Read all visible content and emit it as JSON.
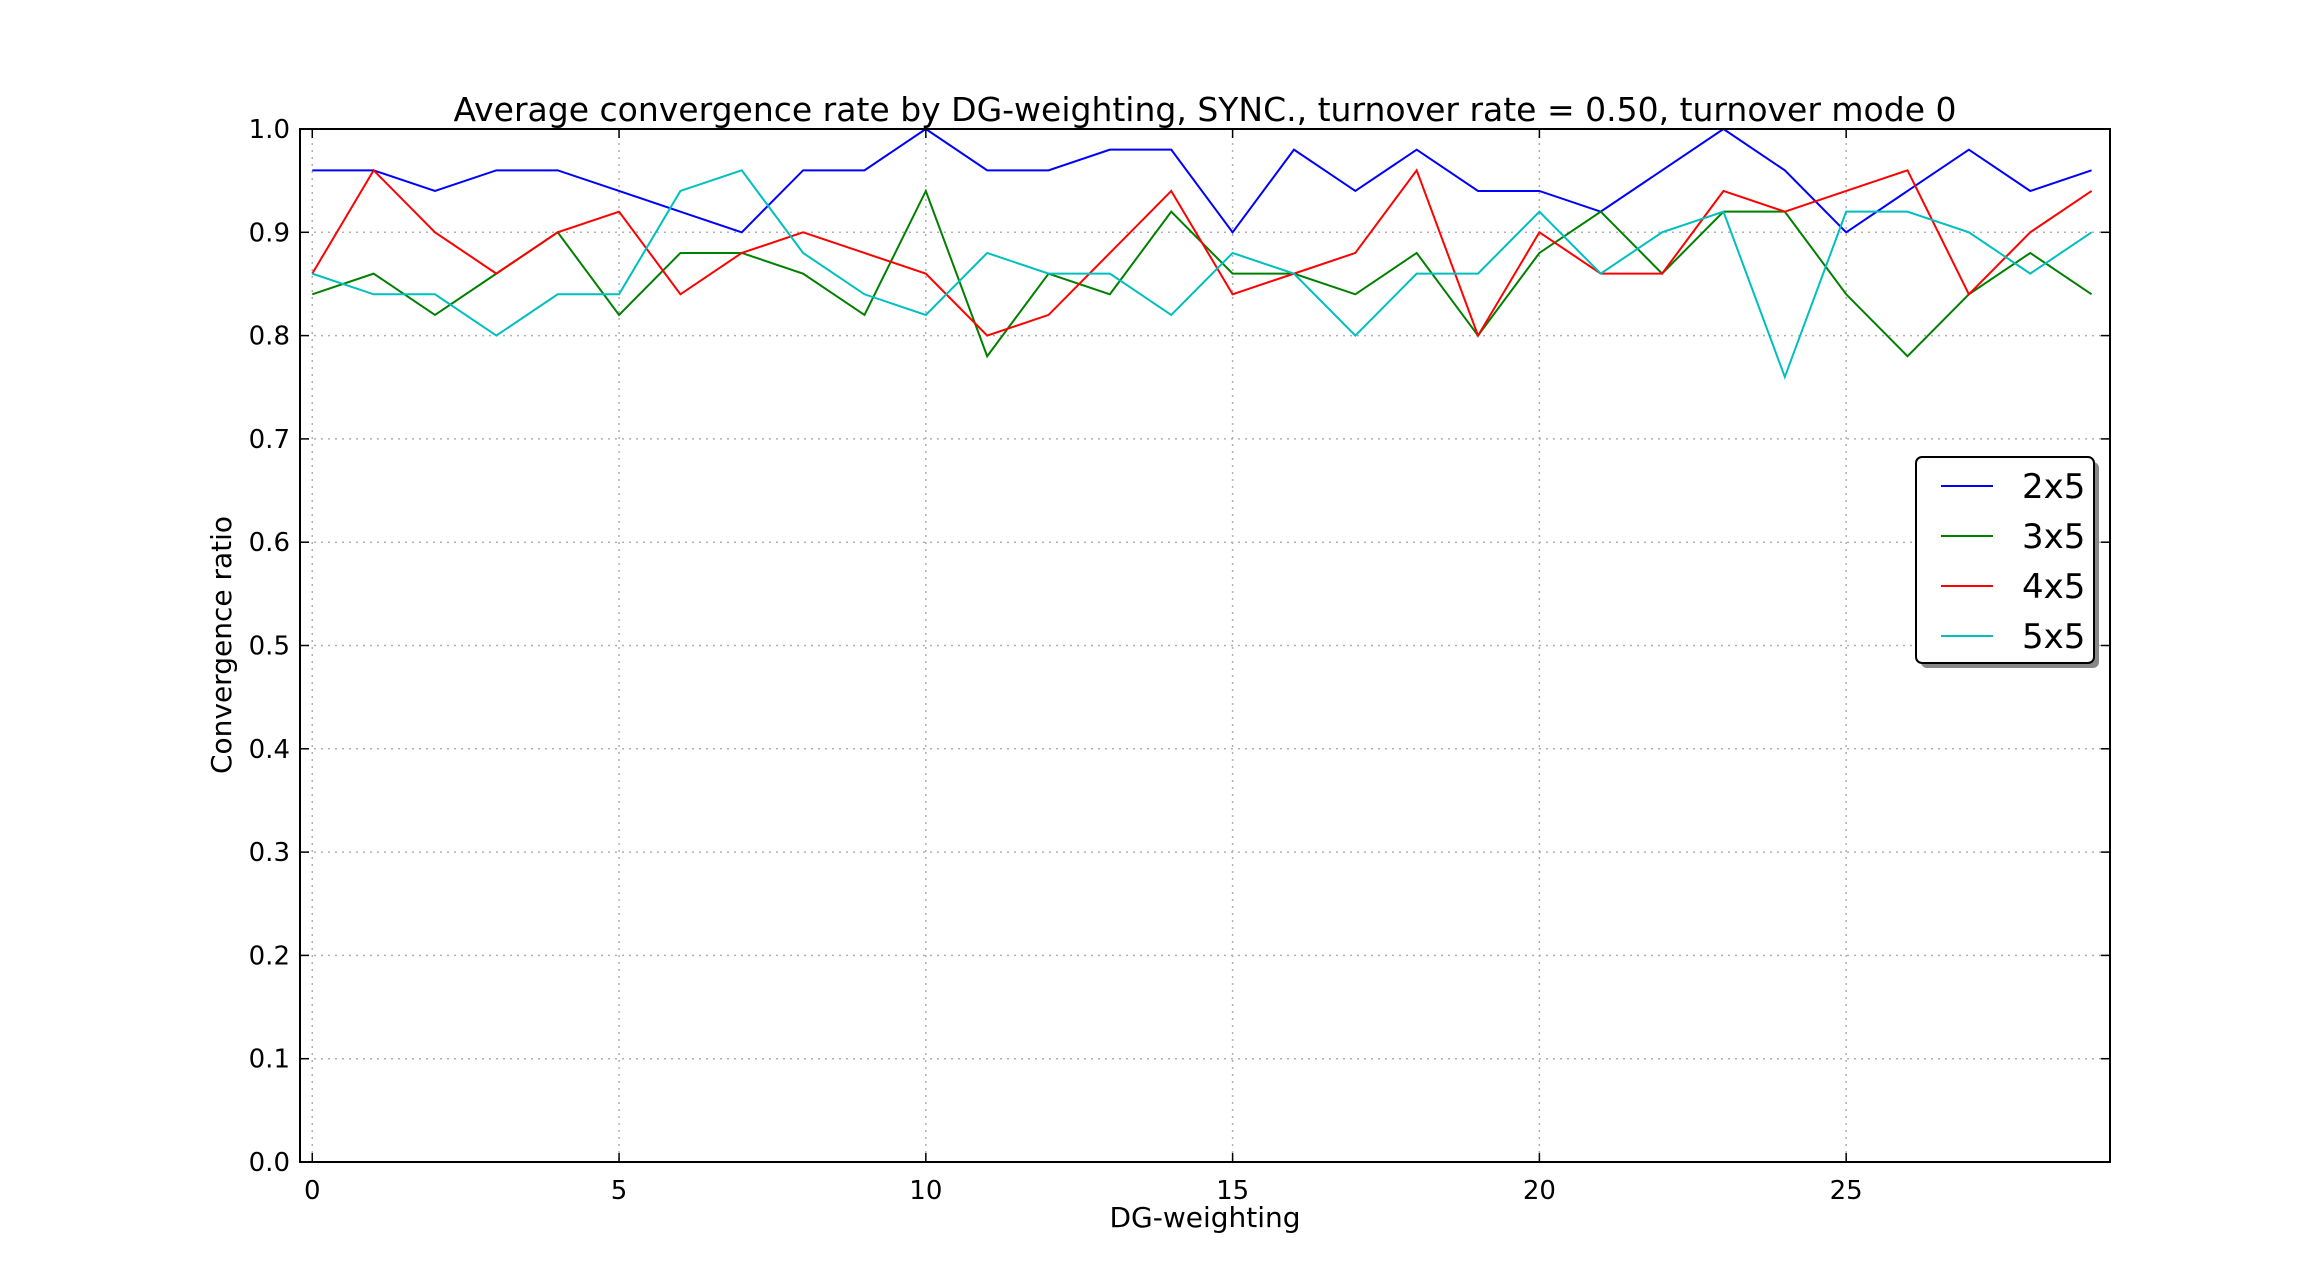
{
  "chart_data": {
    "type": "line",
    "title": "Average convergence rate by DG-weighting, SYNC., turnover rate = 0.50, turnover mode 0",
    "xlabel": "DG-weighting",
    "ylabel": "Convergence ratio",
    "xlim": [
      -0.2,
      29.3
    ],
    "ylim": [
      0.0,
      1.0
    ],
    "x_ticks": [
      0,
      5,
      10,
      15,
      20,
      25
    ],
    "y_ticks": [
      0.0,
      0.1,
      0.2,
      0.3,
      0.4,
      0.5,
      0.6,
      0.7,
      0.8,
      0.9,
      1.0
    ],
    "x_tick_labels": [
      "0",
      "5",
      "10",
      "15",
      "20",
      "25"
    ],
    "y_tick_labels": [
      "0.0",
      "0.1",
      "0.2",
      "0.3",
      "0.4",
      "0.5",
      "0.6",
      "0.7",
      "0.8",
      "0.9",
      "1.0"
    ],
    "grid": true,
    "legend_position": "center-right",
    "x": [
      0,
      1,
      2,
      3,
      4,
      5,
      6,
      7,
      8,
      9,
      10,
      11,
      12,
      13,
      14,
      15,
      16,
      17,
      18,
      19,
      20,
      21,
      22,
      23,
      24,
      25,
      26,
      27,
      28,
      29
    ],
    "series": [
      {
        "name": "2x5",
        "color": "#0000ff",
        "values": [
          0.96,
          0.96,
          0.94,
          0.96,
          0.96,
          0.94,
          0.92,
          0.9,
          0.96,
          0.96,
          1.0,
          0.96,
          0.96,
          0.98,
          0.98,
          0.9,
          0.98,
          0.94,
          0.98,
          0.94,
          0.94,
          0.92,
          0.96,
          1.0,
          0.96,
          0.9,
          0.94,
          0.98,
          0.94,
          0.96
        ]
      },
      {
        "name": "3x5",
        "color": "#008000",
        "values": [
          0.84,
          0.86,
          0.82,
          0.86,
          0.9,
          0.82,
          0.88,
          0.88,
          0.86,
          0.82,
          0.94,
          0.78,
          0.86,
          0.84,
          0.92,
          0.86,
          0.86,
          0.84,
          0.88,
          0.8,
          0.88,
          0.92,
          0.86,
          0.92,
          0.92,
          0.84,
          0.78,
          0.84,
          0.88,
          0.84
        ]
      },
      {
        "name": "4x5",
        "color": "#ff0000",
        "values": [
          0.86,
          0.96,
          0.9,
          0.86,
          0.9,
          0.92,
          0.84,
          0.88,
          0.9,
          0.88,
          0.86,
          0.8,
          0.82,
          0.88,
          0.94,
          0.84,
          0.86,
          0.88,
          0.96,
          0.8,
          0.9,
          0.86,
          0.86,
          0.94,
          0.92,
          0.94,
          0.96,
          0.84,
          0.9,
          0.94
        ]
      },
      {
        "name": "5x5",
        "color": "#00bfbf",
        "values": [
          0.86,
          0.84,
          0.84,
          0.8,
          0.84,
          0.84,
          0.94,
          0.96,
          0.88,
          0.84,
          0.82,
          0.88,
          0.86,
          0.86,
          0.82,
          0.88,
          0.86,
          0.8,
          0.86,
          0.86,
          0.92,
          0.86,
          0.9,
          0.92,
          0.76,
          0.92,
          0.92,
          0.9,
          0.86,
          0.9
        ]
      }
    ]
  }
}
